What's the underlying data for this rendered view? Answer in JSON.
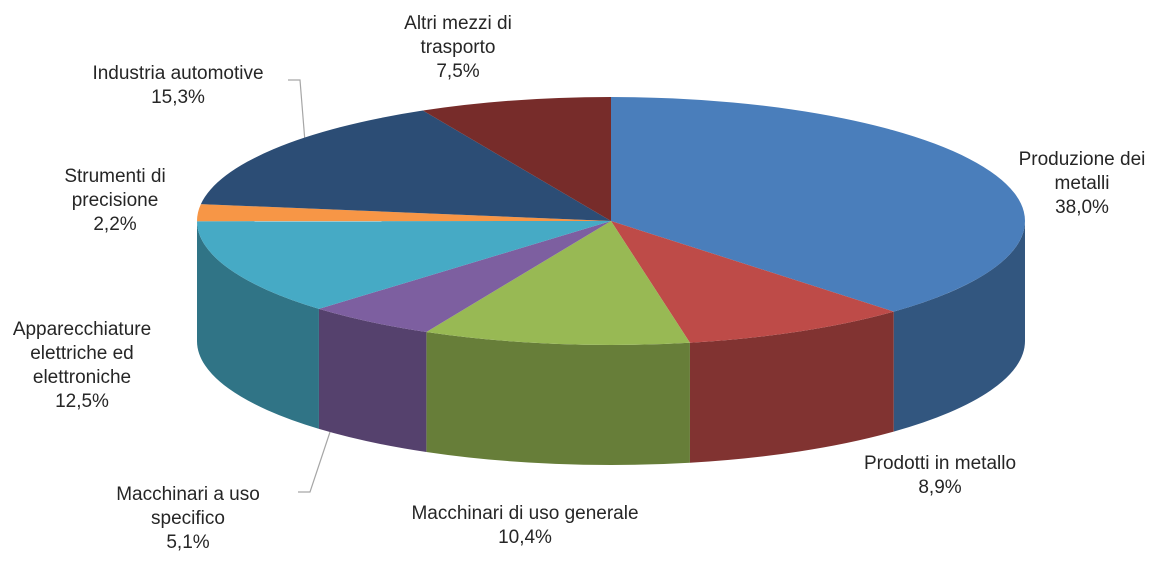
{
  "chart_data": {
    "type": "pie3d",
    "categories": [
      "Produzione dei metalli",
      "Prodotti in metallo",
      "Macchinari di uso generale",
      "Macchinari a uso specifico",
      "Apparecchiature elettriche ed elettroniche",
      "Strumenti di precisione",
      "Industria automotive",
      "Altri mezzi di trasporto"
    ],
    "values": [
      38.0,
      8.9,
      10.4,
      5.1,
      12.5,
      2.2,
      15.3,
      7.5
    ],
    "value_labels": [
      "38,0%",
      "8,9%",
      "10,4%",
      "5,1%",
      "12,5%",
      "2,2%",
      "15,3%",
      "7,5%"
    ],
    "colors": [
      "#4a7ebb",
      "#be4b48",
      "#98b954",
      "#7d5fa0",
      "#46aac5",
      "#f79646",
      "#2c4d75",
      "#772c2a"
    ]
  }
}
